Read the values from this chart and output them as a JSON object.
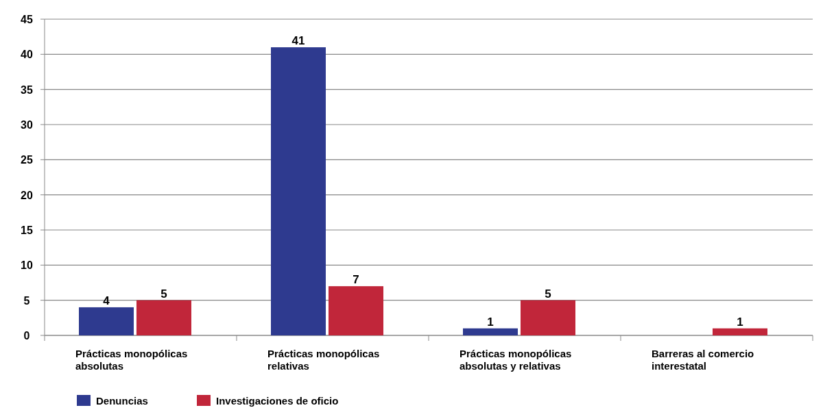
{
  "chart_data": {
    "type": "bar",
    "categories": [
      "Prácticas monopólicas absolutas",
      "Prácticas monopólicas relativas",
      "Prácticas monopólicas absolutas y relativas",
      "Barreras al comercio interestatal"
    ],
    "series": [
      {
        "name": "Denuncias",
        "color": "#2e3a8f",
        "values": [
          4,
          41,
          1,
          null
        ]
      },
      {
        "name": "Investigaciones de oficio",
        "color": "#c1263a",
        "values": [
          5,
          7,
          5,
          1
        ]
      }
    ],
    "ylim": [
      0,
      45
    ],
    "yticks": [
      0,
      5,
      10,
      15,
      20,
      25,
      30,
      35,
      40,
      45
    ],
    "grid": "y",
    "legend": "bottom left",
    "data_labels": true
  }
}
